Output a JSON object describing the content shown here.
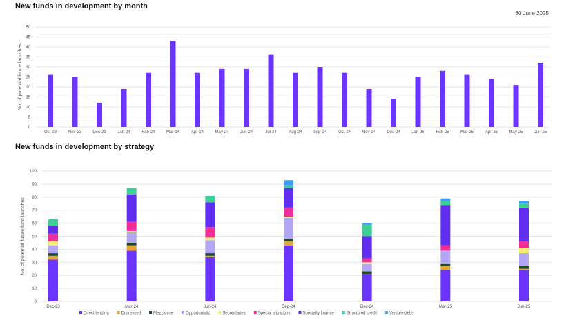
{
  "header": {
    "date": "30 June 2025"
  },
  "chart_data": [
    {
      "type": "bar",
      "title": "New funds in development by month",
      "ylabel": "No. of potential future launches",
      "ylim": [
        0,
        50
      ],
      "yticks": [
        0,
        5,
        10,
        15,
        20,
        25,
        30,
        35,
        40,
        45,
        50
      ],
      "grid": true,
      "color": "#6b34ff",
      "categories": [
        "Oct-23",
        "Nov-23",
        "Dec-23",
        "Jan-24",
        "Feb-24",
        "Mar-24",
        "Apr-24",
        "May-24",
        "Jun-24",
        "Jul-24",
        "Aug-24",
        "Sep-24",
        "Oct-24",
        "Nov-24",
        "Dec-24",
        "Jan-25",
        "Feb-25",
        "Mar-25",
        "Apr-25",
        "May-25",
        "Jun-25"
      ],
      "values": [
        26,
        25,
        12,
        19,
        27,
        43,
        27,
        29,
        29,
        36,
        27,
        30,
        27,
        19,
        14,
        25,
        28,
        26,
        24,
        21,
        32
      ]
    },
    {
      "type": "bar",
      "stacked": true,
      "title": "New funds in development by strategy",
      "ylabel": "No. of potential future fund launches",
      "ylim": [
        0,
        100
      ],
      "yticks": [
        0,
        10,
        20,
        30,
        40,
        50,
        60,
        70,
        80,
        90,
        100
      ],
      "grid": true,
      "legend": "bottom",
      "categories": [
        "Dec-23",
        "Mar-24",
        "Jun-24",
        "Sep-24",
        "Dec-24",
        "Mar-25",
        "Jun-25"
      ],
      "series": [
        {
          "name": "Direct lending",
          "color": "#6b34ff",
          "values": [
            32,
            39,
            34,
            43,
            21,
            24,
            24
          ]
        },
        {
          "name": "Distressed",
          "color": "#e3a63a",
          "values": [
            3,
            4,
            1,
            3,
            0,
            3,
            1
          ]
        },
        {
          "name": "Mezzanine",
          "color": "#1f4d2b",
          "values": [
            2,
            2,
            2,
            2,
            2,
            2,
            2
          ]
        },
        {
          "name": "Opportunistic",
          "color": "#b3a6f5",
          "values": [
            6,
            8,
            10,
            16,
            6,
            10,
            10
          ]
        },
        {
          "name": "Secondaries",
          "color": "#f3ef6e",
          "values": [
            3,
            1,
            2,
            1,
            1,
            0,
            4
          ]
        },
        {
          "name": "Special situations",
          "color": "#ee2f9a",
          "values": [
            6,
            7,
            8,
            7,
            3,
            4,
            5
          ]
        },
        {
          "name": "Specialty finance",
          "color": "#5f2ef0",
          "values": [
            6,
            21,
            19,
            15,
            17,
            31,
            26
          ]
        },
        {
          "name": "Structured credit",
          "color": "#3fcf95",
          "values": [
            5,
            5,
            5,
            2,
            9,
            3,
            3
          ]
        },
        {
          "name": "Venture debt",
          "color": "#3a9ff5",
          "values": [
            0,
            0,
            0,
            4,
            1,
            2,
            2
          ]
        }
      ]
    }
  ]
}
